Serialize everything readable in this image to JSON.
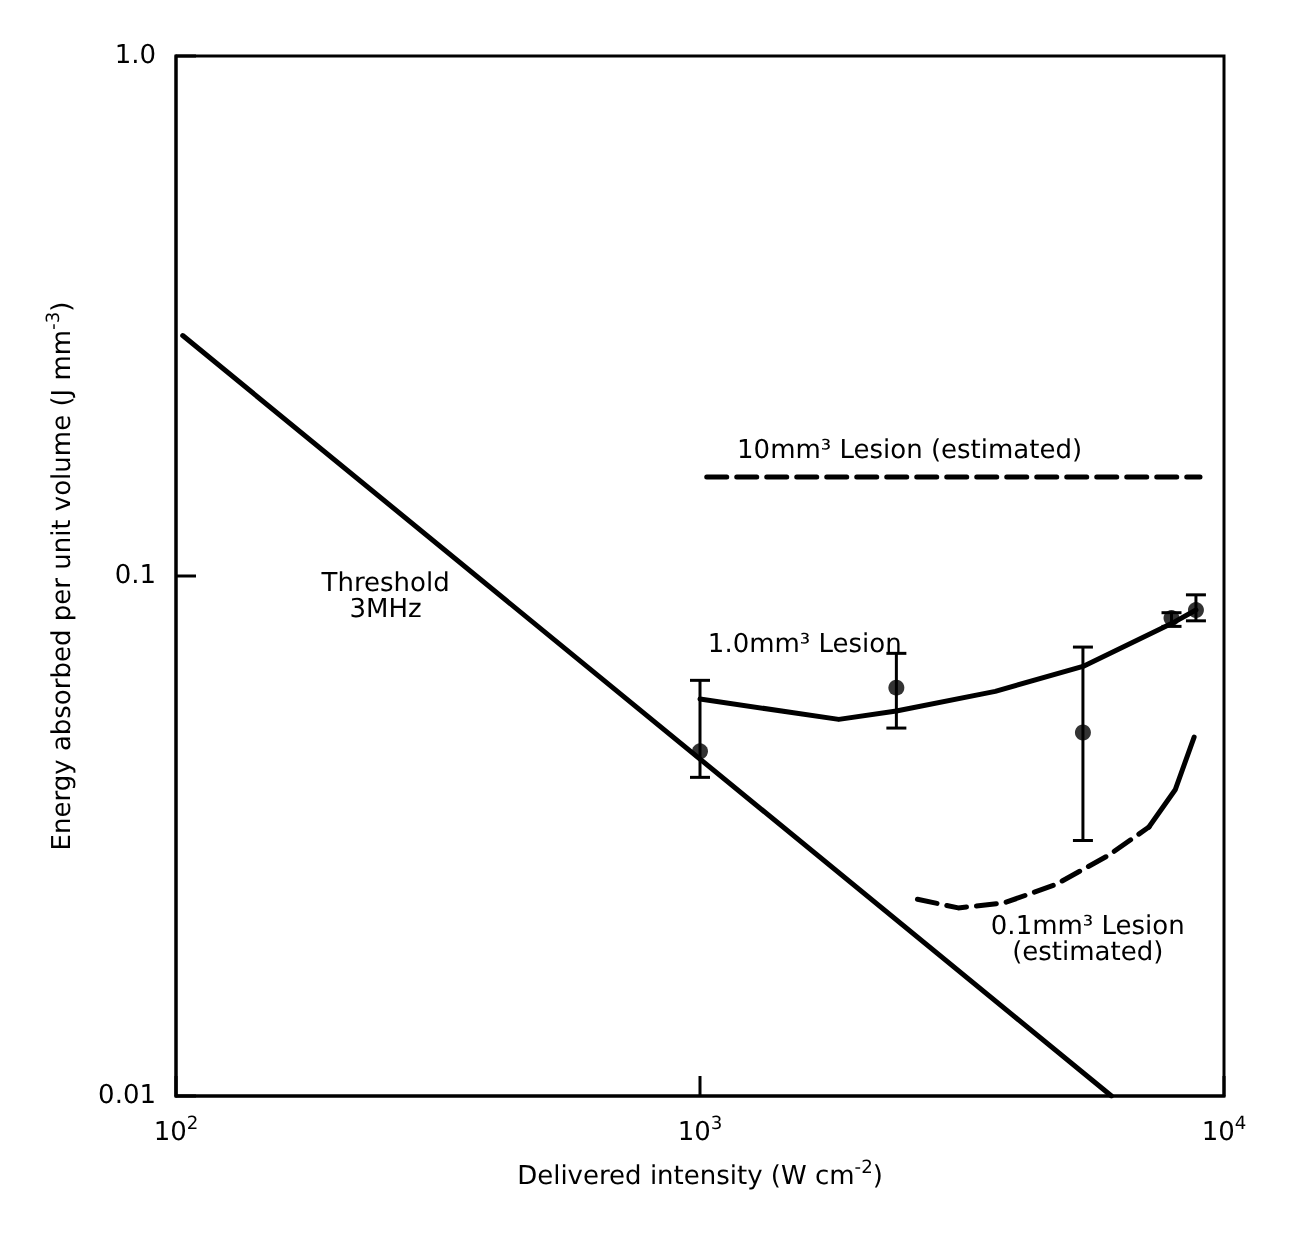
{
  "chart_data": {
    "type": "line",
    "xlabel": "Delivered intensity (W cm$^{-2}$)",
    "ylabel": "Energy absorbed per unit volume (J mm$^{-3}$)",
    "log": "xy",
    "grid": false,
    "xlim": [
      100,
      10000
    ],
    "xticks": [
      {
        "value": 100,
        "label": "10$^{2}$"
      },
      {
        "value": 1000,
        "label": "10$^{3}$"
      },
      {
        "value": 10000,
        "label": "10$^{4}$"
      }
    ],
    "ylim": [
      0.01,
      1
    ],
    "yticks": [
      0.01,
      0.1,
      {
        "value": 1,
        "label": "1.0"
      }
    ],
    "series": [
      {
        "color": "#000000",
        "line_style": "solid",
        "marker": "none",
        "x": [
          103,
          6100
        ],
        "values": [
          0.29,
          0.01
        ]
      },
      {
        "color": "#000000",
        "line_style": "dashed",
        "marker": "none",
        "x": [
          1030,
          9000
        ],
        "values": [
          0.155,
          0.155
        ]
      },
      {
        "color": "#000000",
        "line_style": "solid",
        "marker": "none",
        "x": [
          1000,
          1840,
          2370,
          3660,
          5380,
          7940,
          8840
        ],
        "values": [
          0.058,
          0.053,
          0.055,
          0.06,
          0.067,
          0.081,
          0.086
        ]
      },
      {
        "color": "#000000",
        "line_style": "dashed",
        "marker": "none",
        "x": [
          2600,
          3110,
          3800,
          4770,
          6010,
          7190
        ],
        "values": [
          0.0239,
          0.023,
          0.0235,
          0.0255,
          0.029,
          0.0329
        ]
      },
      {
        "color": "#000000",
        "line_style": "solid",
        "marker": "none",
        "x": [
          7190,
          8070,
          8770
        ],
        "values": [
          0.0329,
          0.0388,
          0.049
        ]
      },
      {
        "type": "scatter",
        "color": "#000000",
        "marker": "circle",
        "x": [
          1000,
          2370,
          5380,
          7940,
          8840
        ],
        "values": [
          0.046,
          0.061,
          0.05,
          0.083,
          0.086
        ],
        "errors": [
          [
            0.041,
            0.063
          ],
          [
            0.051,
            0.071
          ],
          [
            0.031,
            0.073
          ],
          [
            0.08,
            0.085
          ],
          [
            0.082,
            0.092
          ]
        ]
      }
    ],
    "annotations": [
      "Threshold\n3MHz",
      "10mm³ Lesion (estimated)",
      "1.0mm³ Lesion",
      "0.1mm³ Lesion\n(estimated)"
    ]
  }
}
